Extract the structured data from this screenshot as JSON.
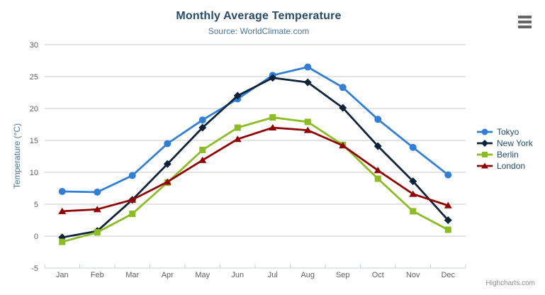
{
  "credits": {
    "label": "Highcharts.com"
  },
  "export_menu": {
    "icon": "hamburger-icon"
  },
  "chart_data": {
    "type": "line",
    "title": "Monthly Average Temperature",
    "subtitle": "Source: WorldClimate.com",
    "xlabel": "",
    "ylabel": "Temperature (°C)",
    "ylim": [
      -5,
      30
    ],
    "ytick_step": 5,
    "yticks": [
      -5,
      0,
      5,
      10,
      15,
      20,
      25,
      30
    ],
    "grid": "horizontal",
    "legend_position": "right",
    "categories": [
      "Jan",
      "Feb",
      "Mar",
      "Apr",
      "May",
      "Jun",
      "Jul",
      "Aug",
      "Sep",
      "Oct",
      "Nov",
      "Dec"
    ],
    "series": [
      {
        "name": "Tokyo",
        "color": "#2f7ed8",
        "marker": "circle",
        "values": [
          7.0,
          6.9,
          9.5,
          14.5,
          18.2,
          21.5,
          25.2,
          26.5,
          23.3,
          18.3,
          13.9,
          9.6
        ]
      },
      {
        "name": "New York",
        "color": "#0d233a",
        "marker": "diamond",
        "values": [
          -0.2,
          0.8,
          5.7,
          11.3,
          17.0,
          22.0,
          24.8,
          24.1,
          20.1,
          14.1,
          8.6,
          2.5
        ]
      },
      {
        "name": "Berlin",
        "color": "#8bbc21",
        "marker": "square",
        "values": [
          -0.9,
          0.6,
          3.5,
          8.4,
          13.5,
          17.0,
          18.6,
          17.9,
          14.3,
          9.0,
          3.9,
          1.0
        ]
      },
      {
        "name": "London",
        "color": "#910000",
        "marker": "triangle",
        "values": [
          3.9,
          4.2,
          5.7,
          8.5,
          11.9,
          15.2,
          17.0,
          16.6,
          14.2,
          10.3,
          6.6,
          4.8
        ]
      }
    ],
    "palette": {
      "title_color": "#274b6d",
      "subtitle_color": "#4d759e",
      "axis_title_color": "#4d759e",
      "axis_label_color": "#606060",
      "grid_color": "#c8c8c8",
      "axis_line_color": "#c0d0e0",
      "legend_text_color": "#274b6d",
      "credits_color": "#8e8e8e",
      "menu_icon_color": "#666666",
      "background_color": "#ffffff"
    }
  }
}
